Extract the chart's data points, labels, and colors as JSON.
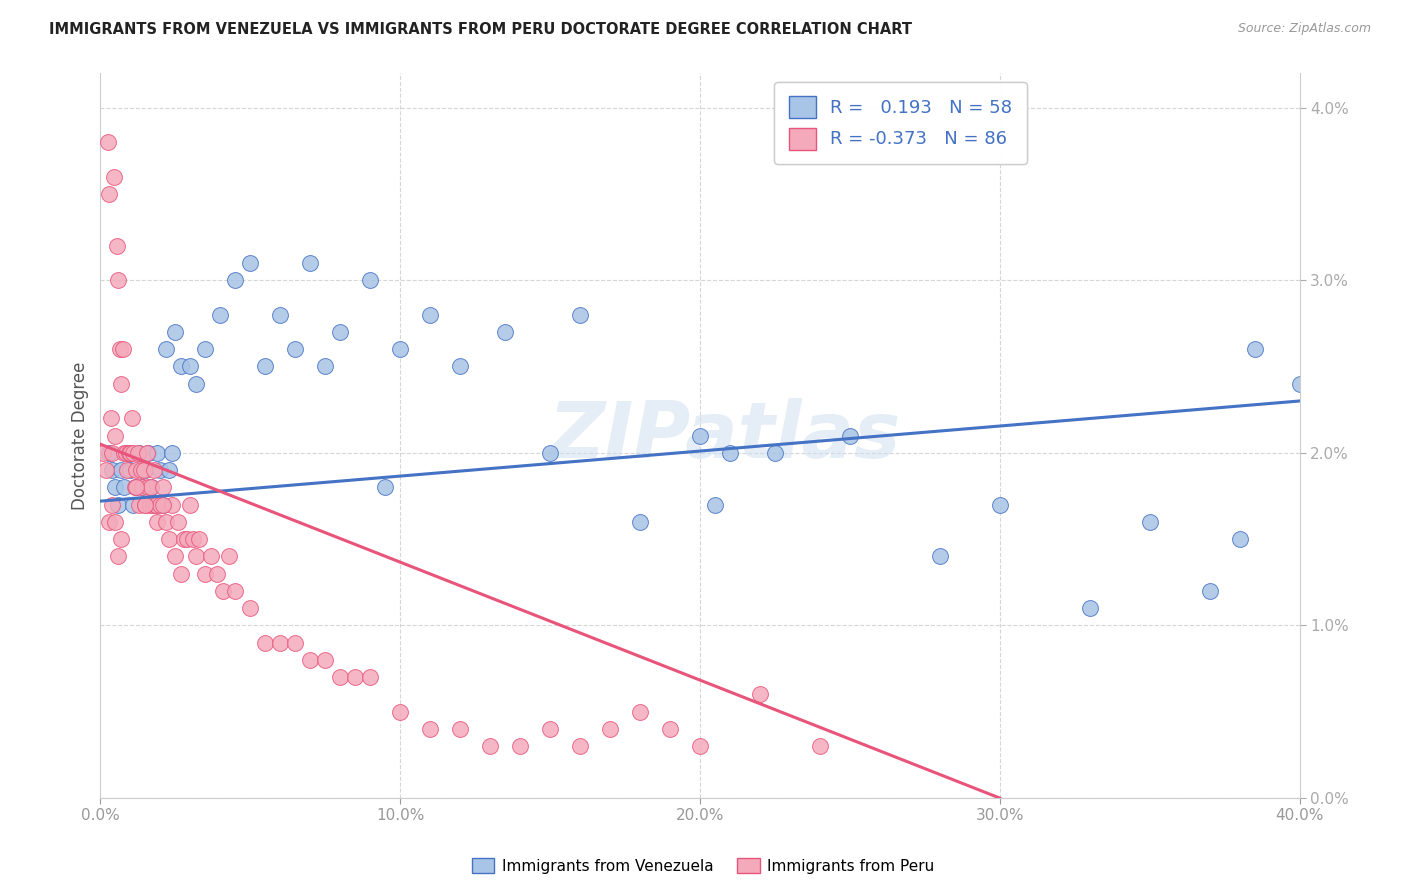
{
  "title": "IMMIGRANTS FROM VENEZUELA VS IMMIGRANTS FROM PERU DOCTORATE DEGREE CORRELATION CHART",
  "source": "Source: ZipAtlas.com",
  "ylabel": "Doctorate Degree",
  "xmin": 0.0,
  "xmax": 40.0,
  "ymin": 0.0,
  "ymax": 4.2,
  "ymax_display": 4.0,
  "R_venezuela": 0.193,
  "N_venezuela": 58,
  "R_peru": -0.373,
  "N_peru": 86,
  "color_venezuela": "#a8c4e6",
  "color_peru": "#f4aabb",
  "line_color_venezuela": "#4472c4",
  "line_color_peru": "#e8547a",
  "watermark": "ZIPatlas",
  "legend_label_venezuela": "Immigrants from Venezuela",
  "legend_label_peru": "Immigrants from Peru",
  "venezuela_line_x0": 0.0,
  "venezuela_line_y0": 1.72,
  "venezuela_line_x1": 40.0,
  "venezuela_line_y1": 2.3,
  "peru_line_x0": 0.0,
  "peru_line_y0": 2.05,
  "peru_line_x1": 30.0,
  "peru_line_y1": 0.0,
  "venezuela_x": [
    0.3,
    0.4,
    0.5,
    0.6,
    0.7,
    0.8,
    0.9,
    1.0,
    1.1,
    1.2,
    1.3,
    1.4,
    1.5,
    1.6,
    1.7,
    1.8,
    1.9,
    2.0,
    2.1,
    2.2,
    2.3,
    2.4,
    2.5,
    2.7,
    3.0,
    3.2,
    3.5,
    4.0,
    4.5,
    5.0,
    5.5,
    6.0,
    7.0,
    7.5,
    8.0,
    9.0,
    10.0,
    11.0,
    12.0,
    13.5,
    15.0,
    16.0,
    18.0,
    20.0,
    20.5,
    21.0,
    22.5,
    25.0,
    28.0,
    30.0,
    33.0,
    35.0,
    37.0,
    38.0,
    40.0,
    6.5,
    9.5,
    38.5
  ],
  "venezuela_y": [
    2.0,
    1.9,
    1.8,
    1.7,
    1.9,
    1.8,
    2.0,
    1.9,
    1.7,
    1.8,
    2.0,
    1.8,
    1.9,
    2.0,
    1.8,
    1.7,
    2.0,
    1.9,
    1.7,
    2.6,
    1.9,
    2.0,
    2.7,
    2.5,
    2.5,
    2.4,
    2.6,
    2.8,
    3.0,
    3.1,
    2.5,
    2.8,
    3.1,
    2.5,
    2.7,
    3.0,
    2.6,
    2.8,
    2.5,
    2.7,
    2.0,
    2.8,
    1.6,
    2.1,
    1.7,
    2.0,
    2.0,
    2.1,
    1.4,
    1.7,
    1.1,
    1.6,
    1.2,
    1.5,
    2.4,
    2.6,
    1.8,
    2.6
  ],
  "peru_x": [
    0.1,
    0.2,
    0.25,
    0.3,
    0.35,
    0.4,
    0.45,
    0.5,
    0.55,
    0.6,
    0.65,
    0.7,
    0.75,
    0.8,
    0.85,
    0.9,
    0.95,
    1.0,
    1.05,
    1.1,
    1.15,
    1.2,
    1.25,
    1.3,
    1.35,
    1.4,
    1.45,
    1.5,
    1.55,
    1.6,
    1.65,
    1.7,
    1.75,
    1.8,
    1.85,
    1.9,
    2.0,
    2.1,
    2.2,
    2.3,
    2.4,
    2.5,
    2.6,
    2.7,
    2.8,
    2.9,
    3.0,
    3.1,
    3.2,
    3.3,
    3.5,
    3.7,
    3.9,
    4.1,
    4.3,
    4.5,
    5.0,
    5.5,
    6.0,
    6.5,
    7.0,
    7.5,
    8.0,
    8.5,
    9.0,
    10.0,
    11.0,
    12.0,
    13.0,
    14.0,
    15.0,
    16.0,
    17.0,
    18.0,
    19.0,
    20.0,
    22.0,
    24.0,
    0.3,
    0.5,
    0.7,
    0.6,
    0.4,
    1.5,
    1.2,
    2.1
  ],
  "peru_y": [
    2.0,
    1.9,
    3.8,
    3.5,
    2.2,
    2.0,
    3.6,
    2.1,
    3.2,
    3.0,
    2.6,
    2.4,
    2.6,
    2.0,
    2.0,
    1.9,
    2.0,
    2.0,
    2.2,
    2.0,
    1.8,
    1.9,
    2.0,
    1.7,
    1.9,
    1.8,
    1.9,
    1.7,
    2.0,
    1.8,
    1.7,
    1.8,
    1.7,
    1.9,
    1.7,
    1.6,
    1.7,
    1.8,
    1.6,
    1.5,
    1.7,
    1.4,
    1.6,
    1.3,
    1.5,
    1.5,
    1.7,
    1.5,
    1.4,
    1.5,
    1.3,
    1.4,
    1.3,
    1.2,
    1.4,
    1.2,
    1.1,
    0.9,
    0.9,
    0.9,
    0.8,
    0.8,
    0.7,
    0.7,
    0.7,
    0.5,
    0.4,
    0.4,
    0.3,
    0.3,
    0.4,
    0.3,
    0.4,
    0.5,
    0.4,
    0.3,
    0.6,
    0.3,
    1.6,
    1.6,
    1.5,
    1.4,
    1.7,
    1.7,
    1.8,
    1.7
  ]
}
